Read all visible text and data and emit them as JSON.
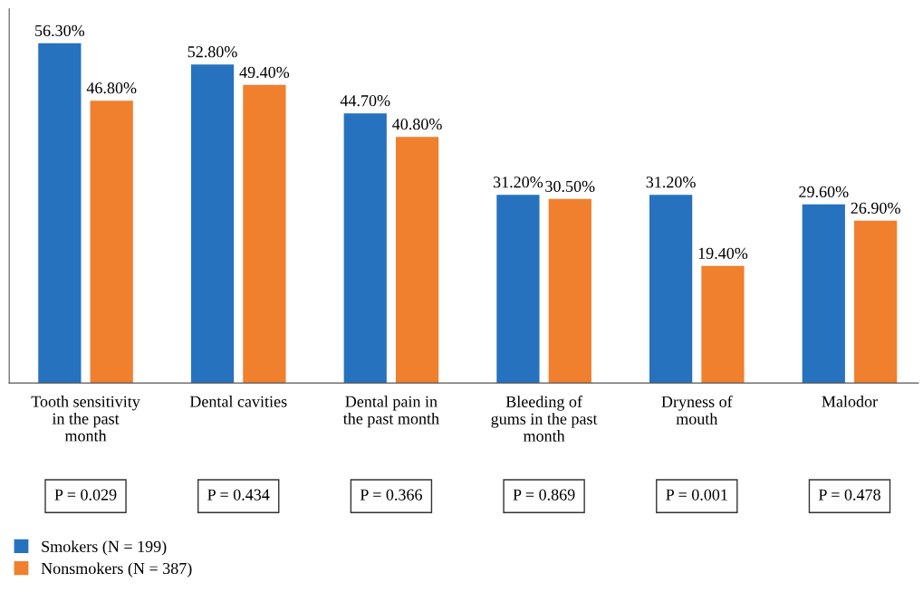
{
  "chart_data": {
    "type": "bar",
    "categories": [
      "Tooth sensitivity\nin the past\nmonth",
      "Dental cavities",
      "Dental pain in\nthe past month",
      "Bleeding of\ngums in the past\nmonth",
      "Dryness of\nmouth",
      "Malodor"
    ],
    "series": [
      {
        "name": "Smokers (N = 199)",
        "color": "#2672bf",
        "values": [
          56.3,
          52.8,
          44.7,
          31.2,
          31.2,
          29.6
        ],
        "value_labels": [
          "56.30%",
          "52.80%",
          "44.70%",
          "31.20%",
          "31.20%",
          "29.60%"
        ]
      },
      {
        "name": "Nonsmokers (N = 387)",
        "color": "#f07f2e",
        "values": [
          46.8,
          49.4,
          40.8,
          30.5,
          19.4,
          26.9
        ],
        "value_labels": [
          "46.80%",
          "49.40%",
          "40.80%",
          "30.50%",
          "19.40%",
          "26.90%"
        ]
      }
    ],
    "annotations": [
      "P = 0.029",
      "P = 0.434",
      "P = 0.366",
      "P = 0.869",
      "P = 0.001",
      "P = 0.478"
    ],
    "ylim": [
      0,
      62
    ],
    "tick_labels": "x",
    "grid": false,
    "legend": "bottom left"
  }
}
